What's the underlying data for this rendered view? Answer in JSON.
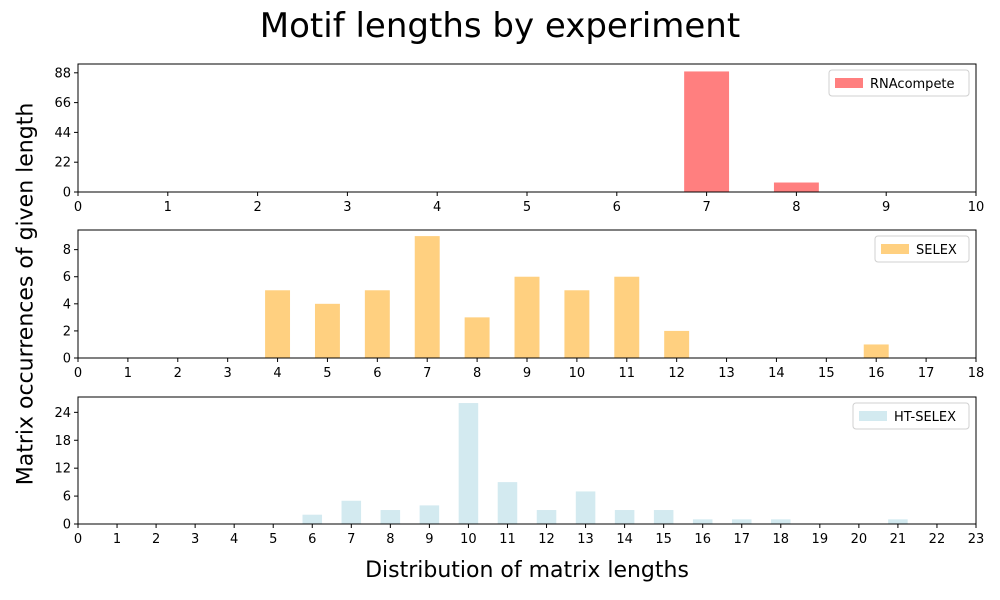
{
  "title": "Motif lengths by experiment",
  "ylabel": "Matrix occurrences of given length",
  "xlabel": "Distribution of matrix lengths",
  "chart_data": [
    {
      "type": "bar",
      "series": [
        {
          "name": "RNAcompete",
          "color": "#ff7f7f"
        }
      ],
      "x": [
        7,
        8
      ],
      "values": [
        89,
        7
      ],
      "xlim": [
        0,
        10
      ],
      "ylim": [
        0,
        94.5
      ],
      "xticks": [
        0,
        1,
        2,
        3,
        4,
        5,
        6,
        7,
        8,
        9,
        10
      ],
      "yticks": [
        0,
        22,
        44,
        66,
        88
      ],
      "legend": "top-right",
      "grid": false
    },
    {
      "type": "bar",
      "series": [
        {
          "name": "SELEX",
          "color": "#ffd080"
        }
      ],
      "x": [
        4,
        5,
        6,
        7,
        8,
        9,
        10,
        11,
        12,
        16
      ],
      "values": [
        5,
        4,
        5,
        9,
        3,
        6,
        5,
        6,
        2,
        1
      ],
      "xlim": [
        0,
        18
      ],
      "ylim": [
        0,
        9.45
      ],
      "xticks": [
        0,
        1,
        2,
        3,
        4,
        5,
        6,
        7,
        8,
        9,
        10,
        11,
        12,
        13,
        14,
        15,
        16,
        17,
        18
      ],
      "yticks": [
        0,
        2,
        4,
        6,
        8
      ],
      "legend": "top-right",
      "grid": false
    },
    {
      "type": "bar",
      "series": [
        {
          "name": "HT-SELEX",
          "color": "#d3eaf0"
        }
      ],
      "x": [
        6,
        7,
        8,
        9,
        10,
        11,
        12,
        13,
        14,
        15,
        16,
        17,
        18,
        21
      ],
      "values": [
        2,
        5,
        3,
        4,
        26,
        9,
        3,
        7,
        3,
        3,
        1,
        1,
        1,
        1
      ],
      "xlim": [
        0,
        23
      ],
      "ylim": [
        0,
        27.3
      ],
      "xticks": [
        0,
        1,
        2,
        3,
        4,
        5,
        6,
        7,
        8,
        9,
        10,
        11,
        12,
        13,
        14,
        15,
        16,
        17,
        18,
        19,
        20,
        21,
        22,
        23
      ],
      "yticks": [
        0,
        6,
        12,
        18,
        24
      ],
      "legend": "top-right",
      "grid": false
    }
  ]
}
